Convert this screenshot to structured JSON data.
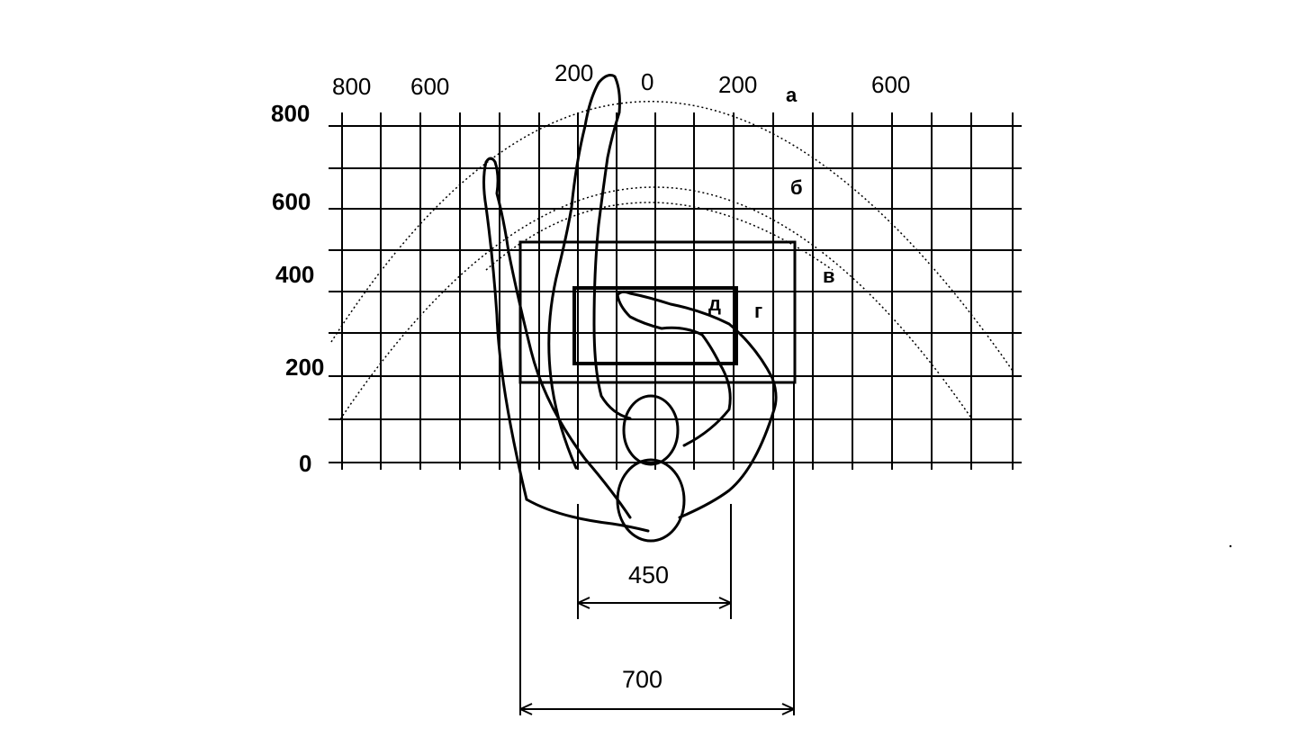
{
  "diagram": {
    "top_scale_labels": [
      "800",
      "600",
      "200",
      "0",
      "200",
      "600"
    ],
    "left_scale_labels": [
      "800",
      "600",
      "400",
      "200",
      "0"
    ],
    "zone_labels": {
      "a": "а",
      "b": "б",
      "v": "в",
      "g": "г",
      "d": "д"
    },
    "dimensions": {
      "shoulder_width": "450",
      "work_width": "700"
    }
  }
}
